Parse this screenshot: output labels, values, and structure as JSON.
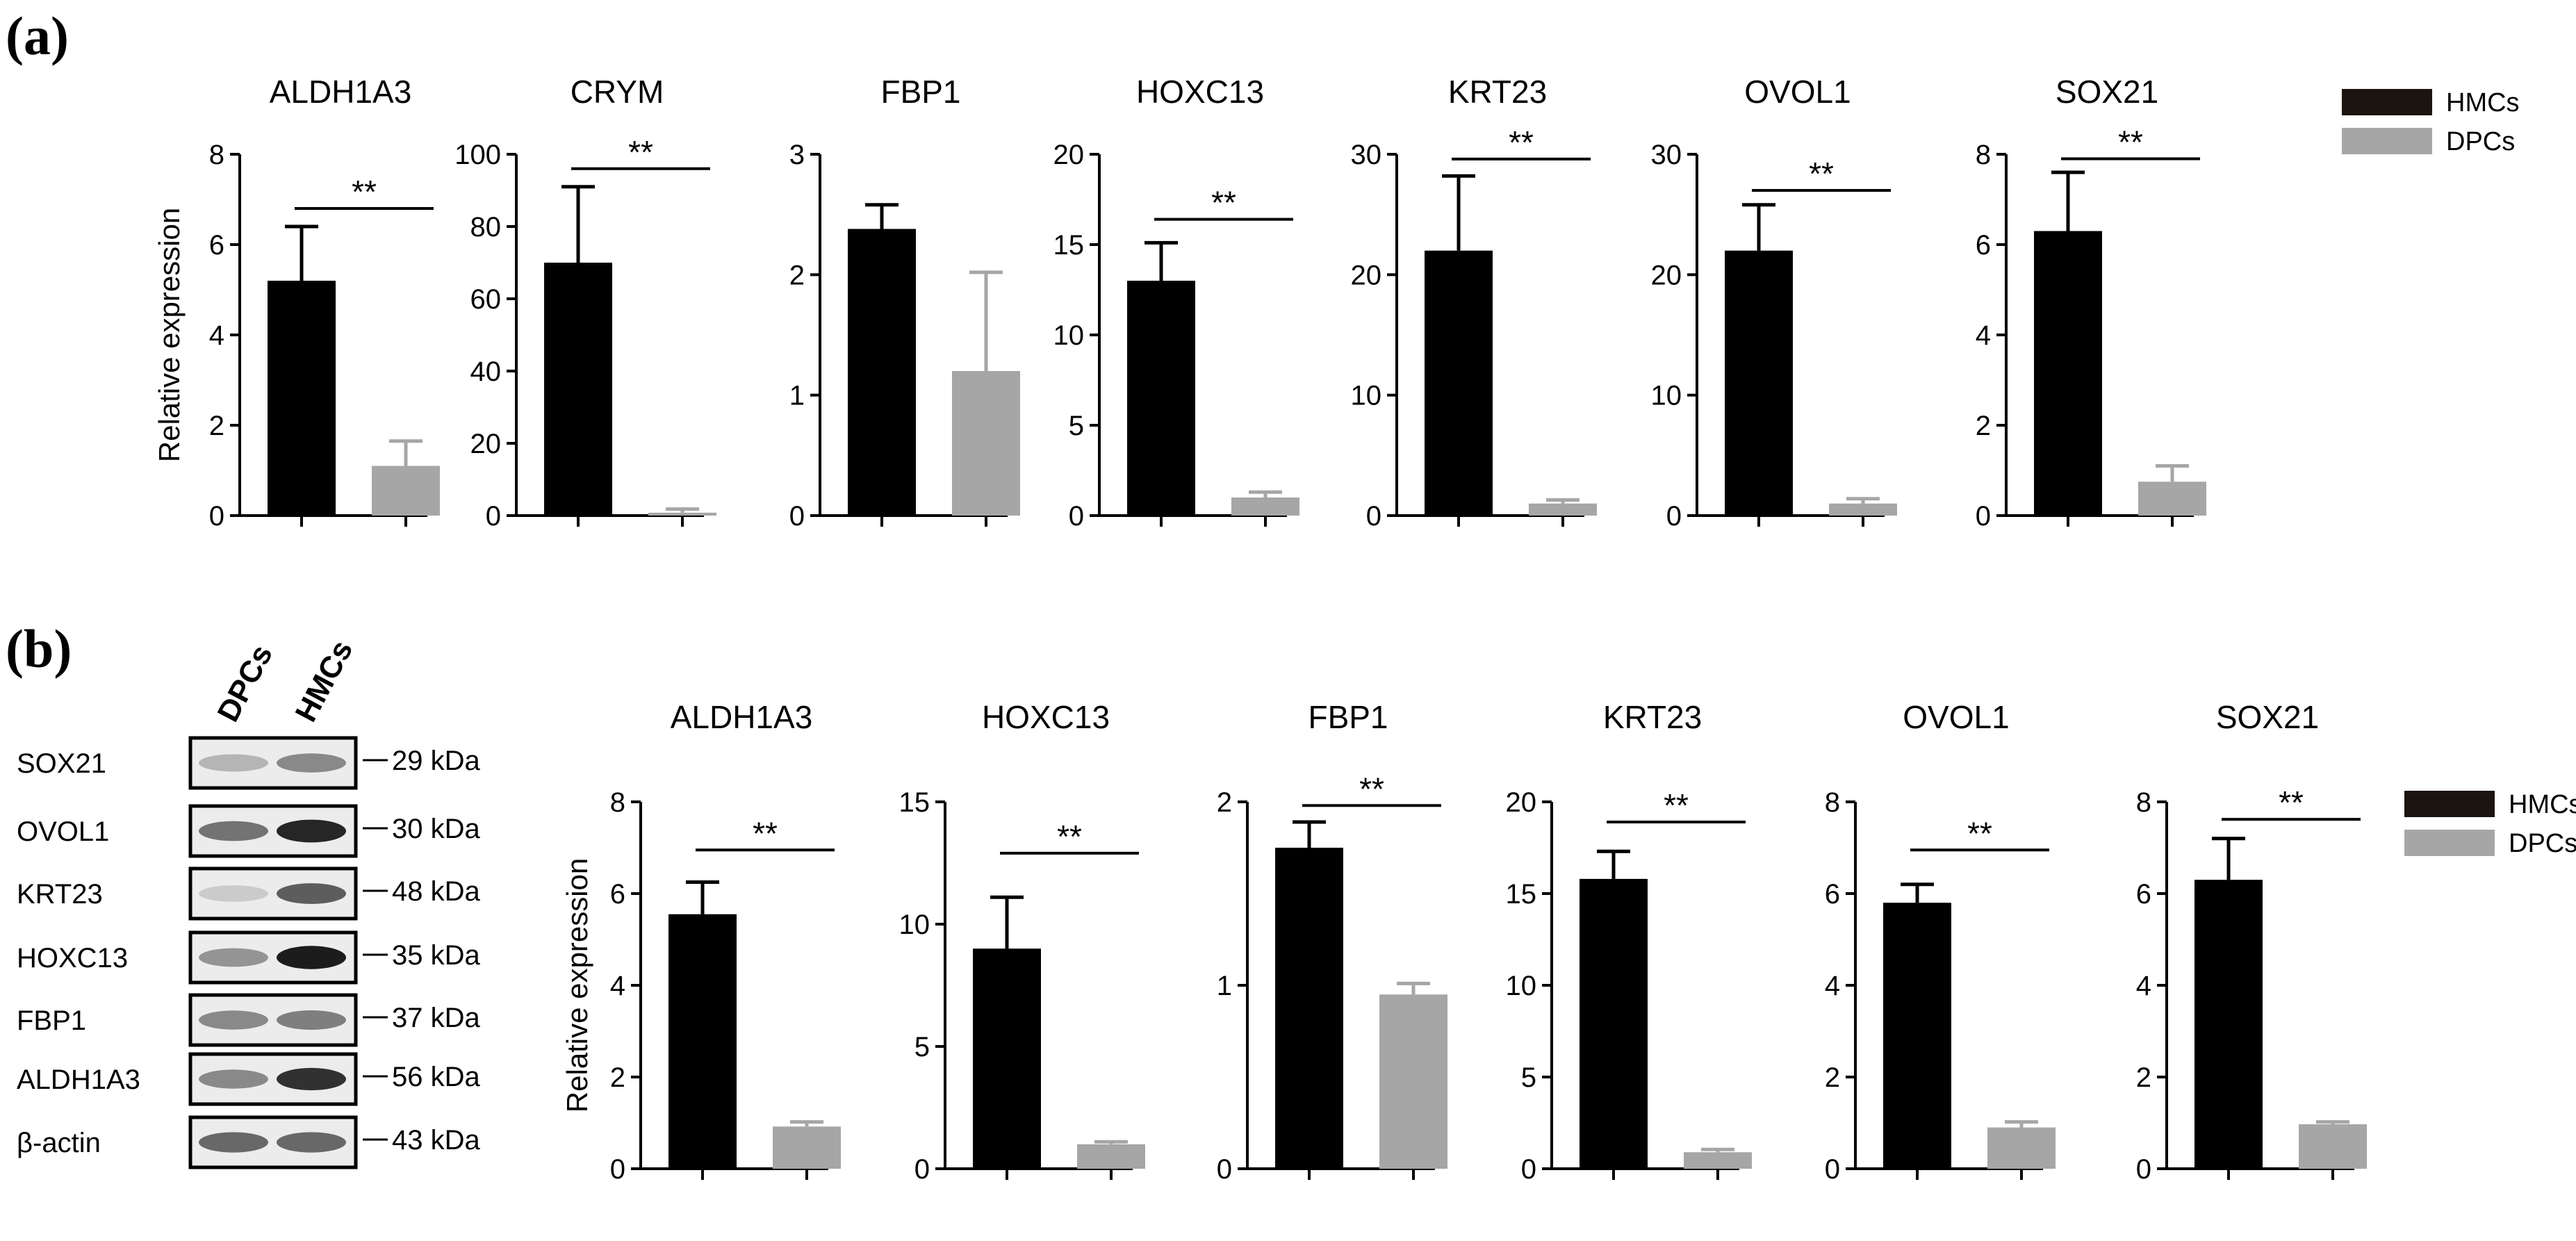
{
  "figure": {
    "panel_a_label": "(a)",
    "panel_b_label": "(b)",
    "panel_a_ylabel": "Relative expression",
    "panel_b_ylabel": "Relative expression",
    "legend_a": [
      {
        "name": "HMCs",
        "color": "#1c1410"
      },
      {
        "name": "DPCs",
        "color": "#a6a6a6"
      }
    ],
    "legend_b": [
      {
        "name": "HMCs",
        "color": "#1c1410"
      },
      {
        "name": "DPCs",
        "color": "#a6a6a6"
      }
    ],
    "colors": {
      "hmc": "#000000",
      "dpc": "#a6a6a6",
      "axis": "#000000"
    }
  },
  "western_blot": {
    "lane_labels": [
      "DPCs",
      "HMCs"
    ],
    "bands": [
      {
        "protein": "SOX21",
        "size": "29 kDa",
        "dpc_intensity": 0.25,
        "hmc_intensity": 0.45
      },
      {
        "protein": "OVOL1",
        "size": "30 kDa",
        "dpc_intensity": 0.55,
        "hmc_intensity": 0.9
      },
      {
        "protein": "KRT23",
        "size": "48 kDa",
        "dpc_intensity": 0.15,
        "hmc_intensity": 0.65
      },
      {
        "protein": "HOXC13",
        "size": "35 kDa",
        "dpc_intensity": 0.4,
        "hmc_intensity": 0.95
      },
      {
        "protein": "FBP1",
        "size": "37 kDa",
        "dpc_intensity": 0.45,
        "hmc_intensity": 0.5
      },
      {
        "protein": "ALDH1A3",
        "size": "56 kDa",
        "dpc_intensity": 0.45,
        "hmc_intensity": 0.85
      },
      {
        "protein": "β-actin",
        "size": "43 kDa",
        "dpc_intensity": 0.6,
        "hmc_intensity": 0.6
      }
    ]
  },
  "chart_data": [
    {
      "type": "bar",
      "panel": "a",
      "title": "ALDH1A3",
      "categories": [
        "HMCs",
        "DPCs"
      ],
      "values": [
        5.2,
        1.1
      ],
      "errors": [
        1.2,
        0.55
      ],
      "ylim": [
        0,
        8
      ],
      "yticks": [
        0,
        2,
        4,
        6,
        8
      ],
      "significance": "**",
      "sig_y": 6.8,
      "ylabel": "Relative expression",
      "xlabel": ""
    },
    {
      "type": "bar",
      "panel": "a",
      "title": "CRYM",
      "categories": [
        "HMCs",
        "DPCs"
      ],
      "values": [
        70,
        0.8
      ],
      "errors": [
        21,
        1.0
      ],
      "ylim": [
        0,
        100
      ],
      "yticks": [
        0,
        20,
        40,
        60,
        80,
        100
      ],
      "significance": "**",
      "sig_y": 96,
      "ylabel": "",
      "xlabel": ""
    },
    {
      "type": "bar",
      "panel": "a",
      "title": "FBP1",
      "categories": [
        "HMCs",
        "DPCs"
      ],
      "values": [
        2.38,
        1.2
      ],
      "errors": [
        0.2,
        0.82
      ],
      "ylim": [
        0,
        3
      ],
      "yticks": [
        0,
        1,
        2,
        3
      ],
      "significance": "",
      "sig_y": 0,
      "ylabel": "",
      "xlabel": ""
    },
    {
      "type": "bar",
      "panel": "a",
      "title": "HOXC13",
      "categories": [
        "HMCs",
        "DPCs"
      ],
      "values": [
        13,
        1.0
      ],
      "errors": [
        2.1,
        0.3
      ],
      "ylim": [
        0,
        20
      ],
      "yticks": [
        0,
        5,
        10,
        15,
        20
      ],
      "significance": "**",
      "sig_y": 16.4,
      "ylabel": "",
      "xlabel": ""
    },
    {
      "type": "bar",
      "panel": "a",
      "title": "KRT23",
      "categories": [
        "HMCs",
        "DPCs"
      ],
      "values": [
        22,
        1.0
      ],
      "errors": [
        6.2,
        0.3
      ],
      "ylim": [
        0,
        30
      ],
      "yticks": [
        0,
        10,
        20,
        30
      ],
      "significance": "**",
      "sig_y": 29.6,
      "ylabel": "",
      "xlabel": ""
    },
    {
      "type": "bar",
      "panel": "a",
      "title": "OVOL1",
      "categories": [
        "HMCs",
        "DPCs"
      ],
      "values": [
        22,
        1.0
      ],
      "errors": [
        3.8,
        0.4
      ],
      "ylim": [
        0,
        30
      ],
      "yticks": [
        0,
        10,
        20,
        30
      ],
      "significance": "**",
      "sig_y": 27,
      "ylabel": "",
      "xlabel": ""
    },
    {
      "type": "bar",
      "panel": "a",
      "title": "SOX21",
      "categories": [
        "HMCs",
        "DPCs"
      ],
      "values": [
        6.3,
        0.75
      ],
      "errors": [
        1.3,
        0.35
      ],
      "ylim": [
        0,
        8
      ],
      "yticks": [
        0,
        2,
        4,
        6,
        8
      ],
      "significance": "**",
      "sig_y": 7.9,
      "ylabel": "",
      "xlabel": ""
    },
    {
      "type": "bar",
      "panel": "b",
      "title": "ALDH1A3",
      "categories": [
        "HMCs",
        "DPCs"
      ],
      "values": [
        5.55,
        0.92
      ],
      "errors": [
        0.7,
        0.1
      ],
      "ylim": [
        0,
        8
      ],
      "yticks": [
        0,
        2,
        4,
        6,
        8
      ],
      "significance": "**",
      "sig_y": 6.95,
      "ylabel": "Relative expression",
      "xlabel": ""
    },
    {
      "type": "bar",
      "panel": "b",
      "title": "HOXC13",
      "categories": [
        "HMCs",
        "DPCs"
      ],
      "values": [
        9.0,
        1.0
      ],
      "errors": [
        2.1,
        0.1
      ],
      "ylim": [
        0,
        15
      ],
      "yticks": [
        0,
        5,
        10,
        15
      ],
      "significance": "**",
      "sig_y": 12.9,
      "ylabel": "",
      "xlabel": ""
    },
    {
      "type": "bar",
      "panel": "b",
      "title": "FBP1",
      "categories": [
        "HMCs",
        "DPCs"
      ],
      "values": [
        1.75,
        0.95
      ],
      "errors": [
        0.14,
        0.06
      ],
      "ylim": [
        0,
        2
      ],
      "yticks": [
        0,
        1,
        2
      ],
      "significance": "**",
      "sig_y": 1.98,
      "ylabel": "",
      "xlabel": ""
    },
    {
      "type": "bar",
      "panel": "b",
      "title": "KRT23",
      "categories": [
        "HMCs",
        "DPCs"
      ],
      "values": [
        15.8,
        0.9
      ],
      "errors": [
        1.5,
        0.15
      ],
      "ylim": [
        0,
        20
      ],
      "yticks": [
        0,
        5,
        10,
        15,
        20
      ],
      "significance": "**",
      "sig_y": 18.9,
      "ylabel": "",
      "xlabel": ""
    },
    {
      "type": "bar",
      "panel": "b",
      "title": "OVOL1",
      "categories": [
        "HMCs",
        "DPCs"
      ],
      "values": [
        5.8,
        0.9
      ],
      "errors": [
        0.4,
        0.12
      ],
      "ylim": [
        0,
        8
      ],
      "yticks": [
        0,
        2,
        4,
        6,
        8
      ],
      "significance": "**",
      "sig_y": 6.95,
      "ylabel": "",
      "xlabel": ""
    },
    {
      "type": "bar",
      "panel": "b",
      "title": "SOX21",
      "categories": [
        "HMCs",
        "DPCs"
      ],
      "values": [
        6.3,
        0.97
      ],
      "errors": [
        0.9,
        0.05
      ],
      "ylim": [
        0,
        8
      ],
      "yticks": [
        0,
        2,
        4,
        6,
        8
      ],
      "significance": "**",
      "sig_y": 7.62,
      "ylabel": "",
      "xlabel": ""
    }
  ]
}
